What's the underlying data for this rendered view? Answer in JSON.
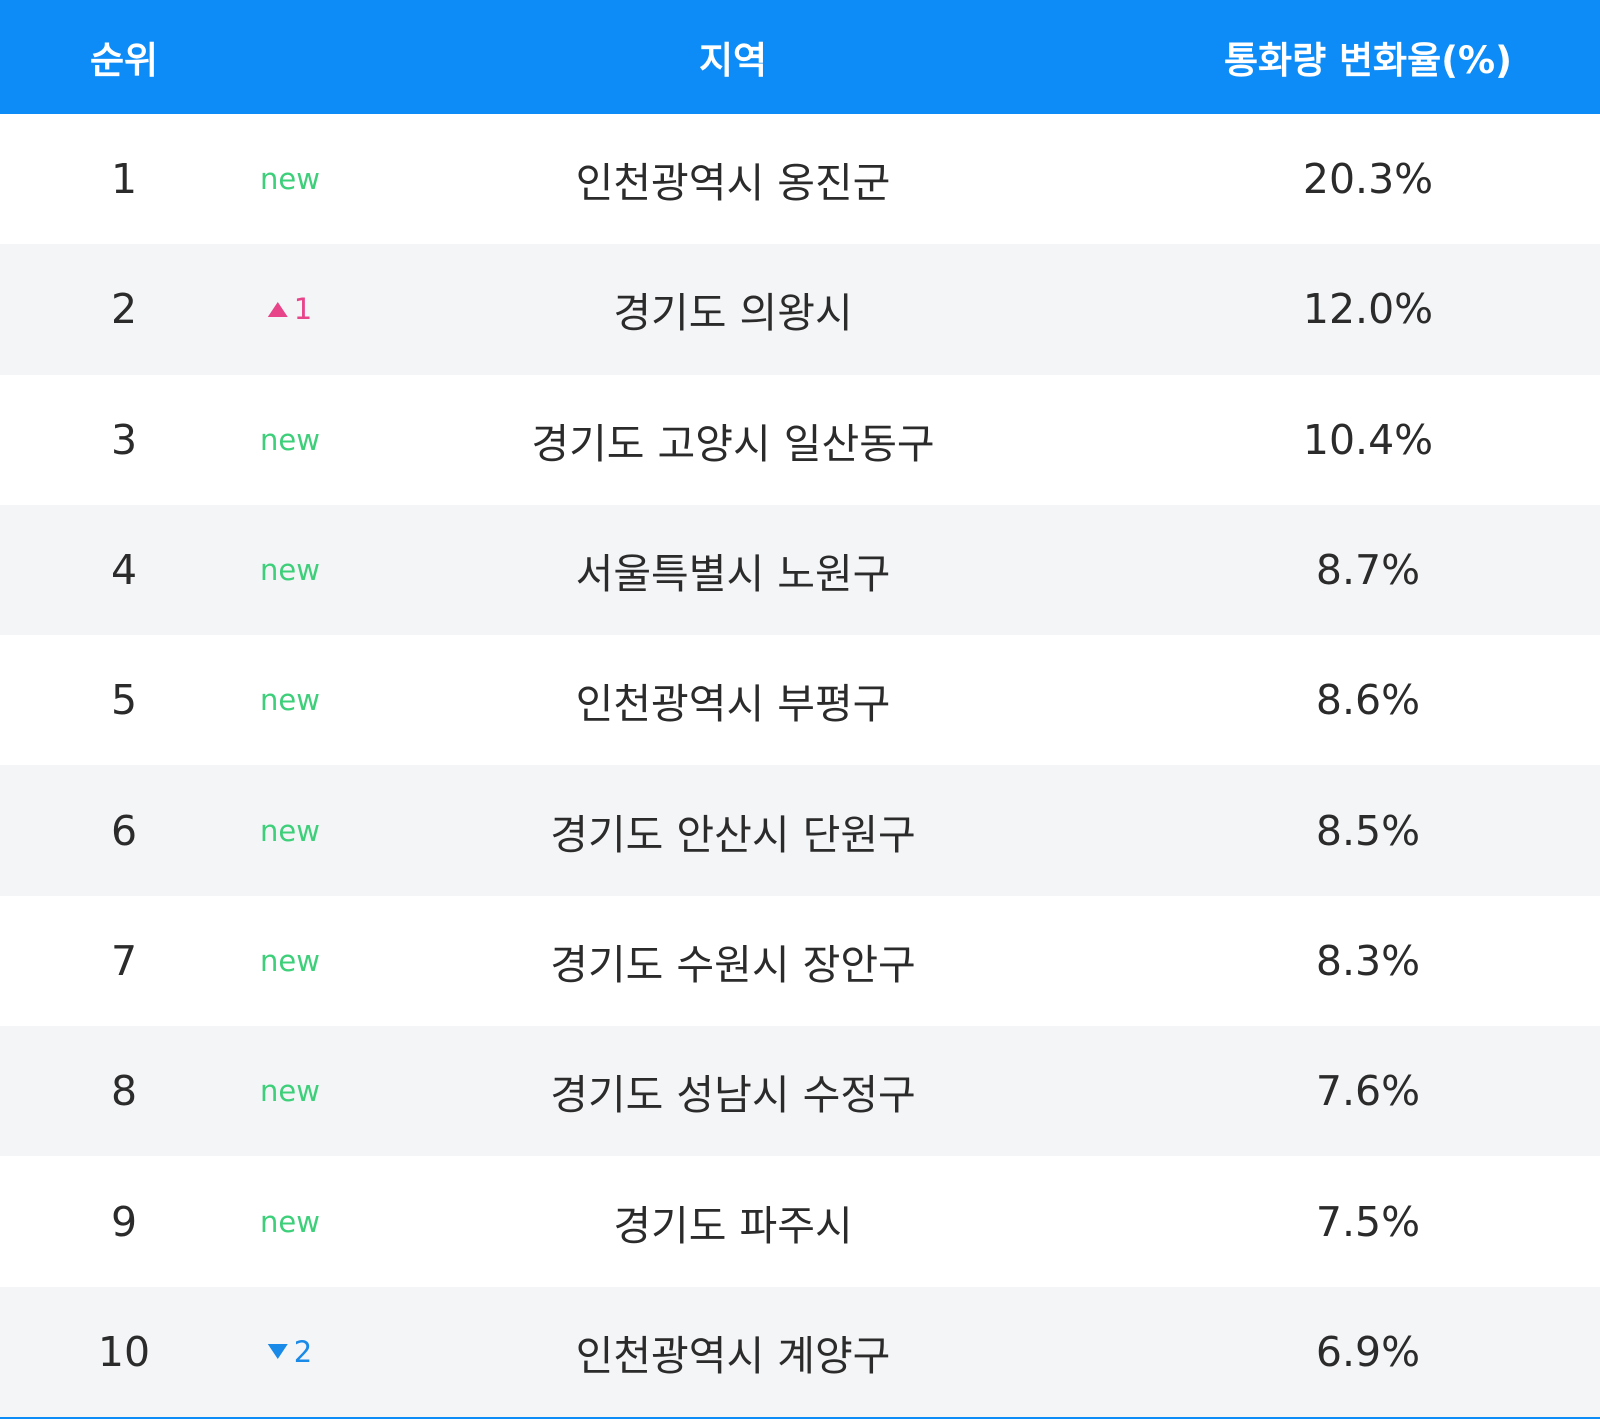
{
  "table": {
    "header": [
      "순위",
      "지역",
      "통화량 변화율(%)"
    ],
    "rows": [
      {
        "rank": "1",
        "change": "new",
        "region": "인천광역시 옹진군",
        "rate": "20.3%"
      },
      {
        "rank": "2",
        "change": {
          "trend": "up",
          "value": 1
        },
        "region": "경기도 의왕시",
        "rate": "12.0%"
      },
      {
        "rank": "3",
        "change": "new",
        "region": "경기도 고양시 일산동구",
        "rate": "10.4%"
      },
      {
        "rank": "4",
        "change": "new",
        "region": "서울특별시 노원구",
        "rate": "8.7%"
      },
      {
        "rank": "5",
        "change": "new",
        "region": "인천광역시 부평구",
        "rate": "8.6%"
      },
      {
        "rank": "6",
        "change": "new",
        "region": "경기도 안산시 단원구",
        "rate": "8.5%"
      },
      {
        "rank": "7",
        "change": "new",
        "region": "경기도 수원시 장안구",
        "rate": "8.3%"
      },
      {
        "rank": "8",
        "change": "new",
        "region": "경기도 성남시 수정구",
        "rate": "7.6%"
      },
      {
        "rank": "9",
        "change": "new",
        "region": "경기도 파주시",
        "rate": "7.5%"
      },
      {
        "rank": "10",
        "change": {
          "trend": "down",
          "value": 2
        },
        "region": "인천광역시 계양구",
        "rate": "6.9%"
      }
    ]
  }
}
